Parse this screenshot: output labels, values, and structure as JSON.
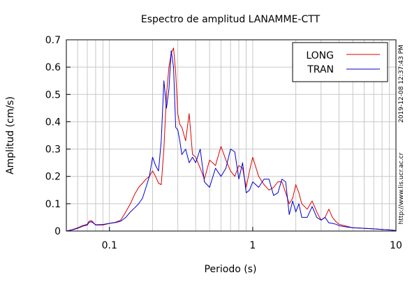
{
  "chart_data": {
    "type": "line",
    "title": "Espectro de amplitud LANAMME-CTT",
    "xlabel": "Periodo (s)",
    "ylabel": "Amplitud (cm/s)",
    "x_scale": "log",
    "xlim": [
      0.05,
      10
    ],
    "ylim": [
      0,
      0.7
    ],
    "x_ticks": [
      {
        "value": 0.1,
        "label": "0.1"
      },
      {
        "value": 1,
        "label": "1"
      },
      {
        "value": 10,
        "label": "10"
      }
    ],
    "y_ticks": [
      {
        "value": 0,
        "label": "0"
      },
      {
        "value": 0.1,
        "label": "0.1"
      },
      {
        "value": 0.2,
        "label": "0.2"
      },
      {
        "value": 0.3,
        "label": "0.3"
      },
      {
        "value": 0.4,
        "label": "0.4"
      },
      {
        "value": 0.5,
        "label": "0.5"
      },
      {
        "value": 0.6,
        "label": "0.6"
      },
      {
        "value": 0.7,
        "label": "0.7"
      }
    ],
    "grid": true,
    "legend_position": "top-right",
    "side_annotations": [
      "2019-12-08 12:37:43 PM",
      "http://www.lis.ucr.ac.cr"
    ],
    "series": [
      {
        "name": "LONG",
        "color": "#dd0000",
        "x": [
          0.05,
          0.055,
          0.06,
          0.065,
          0.07,
          0.072,
          0.075,
          0.08,
          0.09,
          0.1,
          0.11,
          0.12,
          0.13,
          0.14,
          0.15,
          0.16,
          0.17,
          0.18,
          0.19,
          0.2,
          0.21,
          0.22,
          0.23,
          0.24,
          0.25,
          0.26,
          0.27,
          0.28,
          0.29,
          0.3,
          0.31,
          0.32,
          0.34,
          0.36,
          0.38,
          0.4,
          0.43,
          0.46,
          0.5,
          0.55,
          0.6,
          0.65,
          0.7,
          0.75,
          0.8,
          0.85,
          0.9,
          0.95,
          1.0,
          1.1,
          1.2,
          1.3,
          1.4,
          1.5,
          1.6,
          1.7,
          1.8,
          1.9,
          2.0,
          2.1,
          2.2,
          2.4,
          2.6,
          2.8,
          3.0,
          3.2,
          3.4,
          3.6,
          3.8,
          4.0,
          4.5,
          5,
          6,
          7,
          8,
          9,
          10
        ],
        "y": [
          0.0,
          0.005,
          0.012,
          0.02,
          0.025,
          0.036,
          0.038,
          0.022,
          0.022,
          0.028,
          0.032,
          0.04,
          0.07,
          0.1,
          0.135,
          0.16,
          0.175,
          0.19,
          0.2,
          0.22,
          0.2,
          0.175,
          0.17,
          0.3,
          0.5,
          0.6,
          0.65,
          0.67,
          0.58,
          0.43,
          0.39,
          0.38,
          0.33,
          0.43,
          0.28,
          0.27,
          0.23,
          0.19,
          0.26,
          0.24,
          0.31,
          0.26,
          0.22,
          0.2,
          0.24,
          0.23,
          0.16,
          0.22,
          0.27,
          0.2,
          0.17,
          0.15,
          0.16,
          0.18,
          0.18,
          0.14,
          0.1,
          0.12,
          0.17,
          0.14,
          0.1,
          0.08,
          0.11,
          0.07,
          0.04,
          0.05,
          0.08,
          0.05,
          0.035,
          0.025,
          0.018,
          0.012,
          0.01,
          0.008,
          0.006,
          0.004,
          0.002
        ]
      },
      {
        "name": "TRAN",
        "color": "#0000cc",
        "x": [
          0.05,
          0.055,
          0.06,
          0.065,
          0.07,
          0.072,
          0.075,
          0.08,
          0.09,
          0.1,
          0.11,
          0.12,
          0.13,
          0.14,
          0.15,
          0.16,
          0.17,
          0.18,
          0.19,
          0.2,
          0.21,
          0.22,
          0.23,
          0.24,
          0.25,
          0.26,
          0.27,
          0.28,
          0.29,
          0.3,
          0.31,
          0.32,
          0.34,
          0.36,
          0.38,
          0.4,
          0.43,
          0.46,
          0.5,
          0.55,
          0.6,
          0.65,
          0.7,
          0.75,
          0.8,
          0.85,
          0.9,
          0.95,
          1.0,
          1.1,
          1.2,
          1.3,
          1.4,
          1.5,
          1.6,
          1.7,
          1.8,
          1.9,
          2.0,
          2.1,
          2.2,
          2.4,
          2.6,
          2.8,
          3.0,
          3.2,
          3.4,
          3.6,
          3.8,
          4.0,
          4.5,
          5,
          6,
          7,
          8,
          9,
          10
        ],
        "y": [
          0.0,
          0.004,
          0.01,
          0.018,
          0.022,
          0.032,
          0.034,
          0.023,
          0.024,
          0.028,
          0.031,
          0.036,
          0.05,
          0.07,
          0.085,
          0.1,
          0.12,
          0.16,
          0.2,
          0.27,
          0.24,
          0.22,
          0.33,
          0.55,
          0.45,
          0.52,
          0.66,
          0.6,
          0.38,
          0.37,
          0.33,
          0.28,
          0.3,
          0.25,
          0.27,
          0.25,
          0.3,
          0.18,
          0.16,
          0.23,
          0.2,
          0.23,
          0.3,
          0.29,
          0.19,
          0.25,
          0.14,
          0.15,
          0.18,
          0.16,
          0.19,
          0.19,
          0.13,
          0.14,
          0.19,
          0.18,
          0.06,
          0.11,
          0.07,
          0.1,
          0.05,
          0.05,
          0.09,
          0.05,
          0.04,
          0.05,
          0.03,
          0.028,
          0.025,
          0.02,
          0.015,
          0.012,
          0.01,
          0.008,
          0.006,
          0.004,
          0.002
        ]
      }
    ]
  }
}
